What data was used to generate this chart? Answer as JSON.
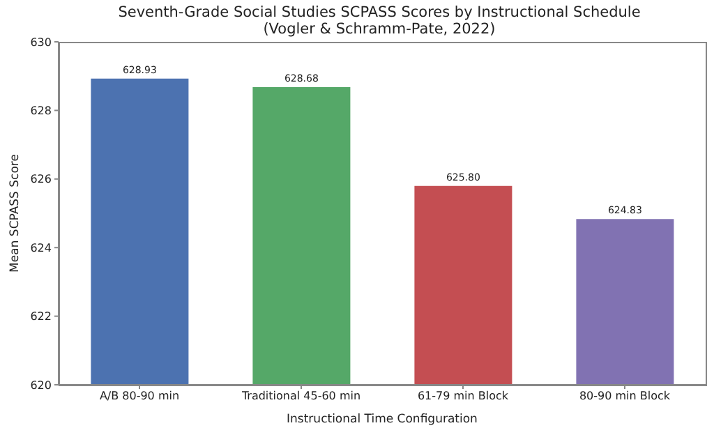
{
  "chart_data": {
    "type": "bar",
    "title": "Seventh-Grade Social Studies SCPASS Scores by Instructional Schedule",
    "subtitle": "(Vogler & Schramm-Pate, 2022)",
    "xlabel": "Instructional Time Configuration",
    "ylabel": "Mean SCPASS Score",
    "categories": [
      "A/B 80-90 min",
      "Traditional 45-60 min",
      "61-79 min Block",
      "80-90 min Block"
    ],
    "values": [
      628.93,
      628.68,
      625.8,
      624.83
    ],
    "colors": [
      "#4c72b0",
      "#55a868",
      "#c44e52",
      "#8172b2"
    ],
    "value_labels": [
      "628.93",
      "628.68",
      "625.80",
      "624.83"
    ],
    "ylim": [
      620,
      630
    ],
    "yticks": [
      620,
      622,
      624,
      626,
      628,
      630
    ],
    "grid": false,
    "legend": false
  }
}
